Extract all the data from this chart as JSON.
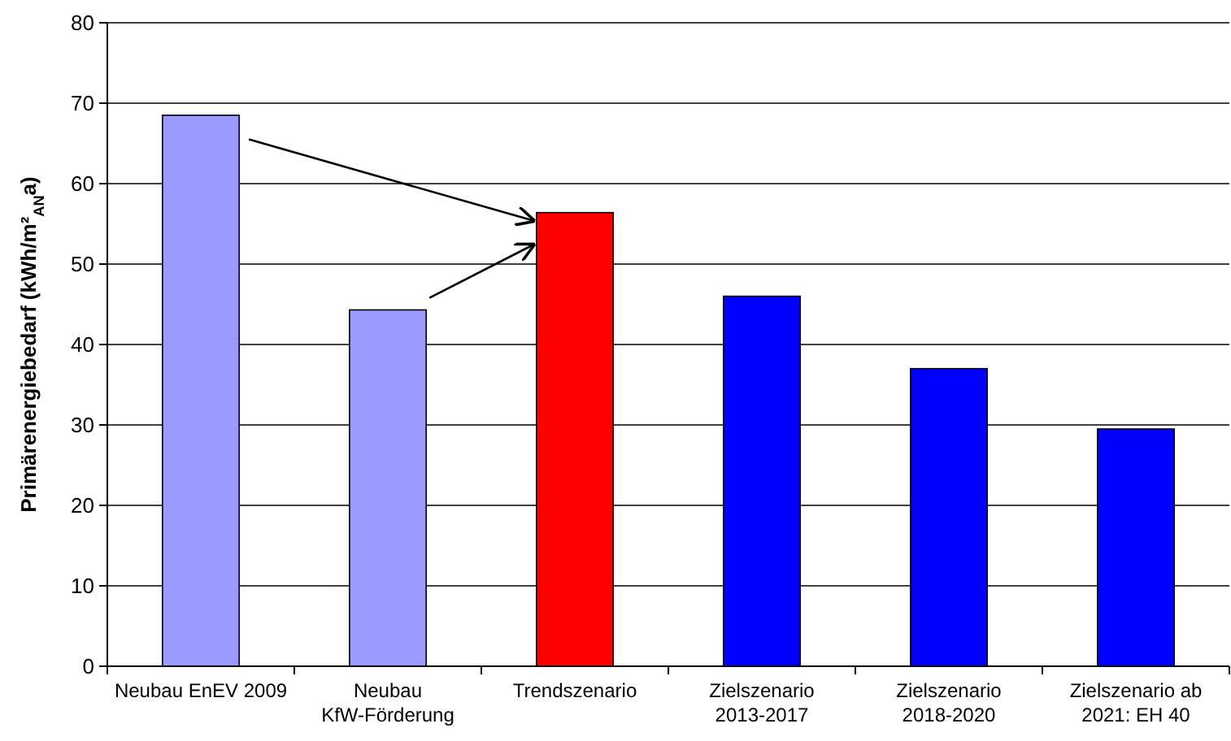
{
  "chart_data": {
    "type": "bar",
    "ylabel": "Primärenergiebedarf (kWh/m²$_{AN}$a)",
    "categories": [
      "Neubau EnEV 2009",
      "Neubau KfW-Förderung",
      "Trendszenario",
      "Zielszenario 2013-2017",
      "Zielszenario 2018-2020",
      "Zielszenario ab 2021: EH 40"
    ],
    "values": [
      68.5,
      44.3,
      56.4,
      46,
      37,
      29.5
    ],
    "colors": [
      "#9999ff",
      "#9999ff",
      "#ff0000",
      "#0000ff",
      "#0000ff",
      "#0000ff"
    ],
    "ylim": [
      0,
      80
    ],
    "yticks": [
      0,
      10,
      20,
      30,
      40,
      50,
      60,
      70,
      80
    ],
    "grid": "y"
  }
}
